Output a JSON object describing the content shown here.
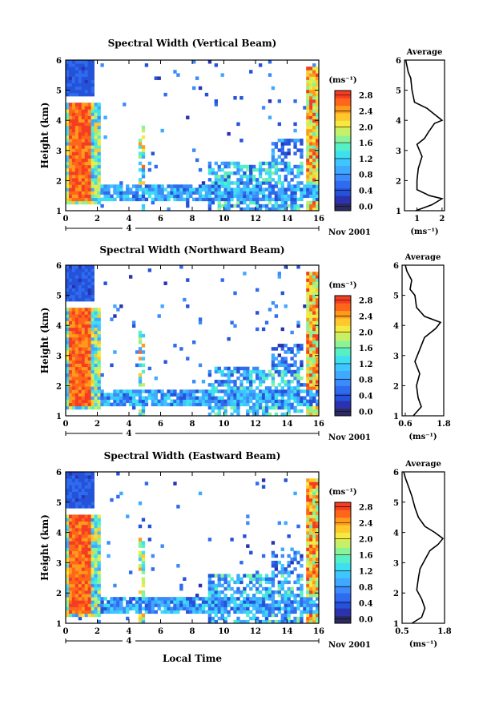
{
  "colors": {
    "scale": [
      "#2b2a63",
      "#2a32b0",
      "#2452d8",
      "#2f6bee",
      "#3c8bfa",
      "#3fa9ff",
      "#3fc6ff",
      "#3ee0f0",
      "#56f0c6",
      "#8af39a",
      "#c5f067",
      "#f3ea43",
      "#ffc92e",
      "#ff9a1c",
      "#ff6619",
      "#f43d22"
    ],
    "line": "#000000"
  },
  "shared": {
    "xlabel": "Local Time",
    "date_label": "Nov 2001",
    "day_marker": "4",
    "ylabel": "Height (km)",
    "colorbar_unit": "(ms⁻¹)",
    "profile_title": "Average",
    "profile_unit": "(ms⁻¹)"
  },
  "chart_data": [
    {
      "type": "heatmap",
      "title": "Spectral Width (Vertical Beam)",
      "xlabel": "Local Time",
      "ylabel": "Height (km)",
      "xlim": [
        0,
        16
      ],
      "ylim": [
        1,
        6
      ],
      "xticks": [
        0,
        2,
        4,
        6,
        8,
        10,
        12,
        14,
        16
      ],
      "yticks": [
        1,
        2,
        3,
        4,
        5,
        6
      ],
      "colorbar": {
        "min": 0.0,
        "max": 2.8,
        "ticks": [
          "0.0",
          "0.4",
          "0.8",
          "1.2",
          "1.6",
          "2.0",
          "2.4",
          "2.8"
        ]
      },
      "profile": {
        "title": "Average",
        "xlim": [
          0.5,
          2.1
        ],
        "xticks": [
          1,
          2
        ],
        "heights": [
          1.0,
          1.2,
          1.4,
          1.5,
          1.7,
          2.0,
          2.4,
          2.8,
          3.2,
          3.4,
          3.6,
          3.9,
          4.0,
          4.2,
          4.4,
          4.6,
          5.0,
          5.4,
          5.6,
          5.8,
          6.0
        ],
        "values": [
          0.95,
          1.6,
          2.0,
          1.5,
          1.0,
          1.0,
          1.05,
          1.2,
          1.0,
          1.3,
          1.45,
          1.7,
          2.0,
          1.7,
          1.4,
          0.9,
          0.8,
          0.75,
          0.65,
          0.6,
          0.55
        ]
      }
    },
    {
      "type": "heatmap",
      "title": "Spectral Width (Northward Beam)",
      "xlabel": "Local Time",
      "ylabel": "Height (km)",
      "xlim": [
        0,
        16
      ],
      "ylim": [
        1,
        6
      ],
      "xticks": [
        0,
        2,
        4,
        6,
        8,
        10,
        12,
        14,
        16
      ],
      "yticks": [
        1,
        2,
        3,
        4,
        5,
        6
      ],
      "colorbar": {
        "min": 0.0,
        "max": 2.8,
        "ticks": [
          "0.0",
          "0.4",
          "0.8",
          "1.2",
          "1.6",
          "2.0",
          "2.4",
          "2.8"
        ]
      },
      "profile": {
        "title": "Average",
        "xlim": [
          0.5,
          1.8
        ],
        "xticks": [
          0.6,
          1.8
        ],
        "heights": [
          1.0,
          1.3,
          1.6,
          2.0,
          2.4,
          2.8,
          3.2,
          3.6,
          3.9,
          4.1,
          4.3,
          4.6,
          5.0,
          5.2,
          5.5,
          5.8,
          6.0
        ],
        "values": [
          0.85,
          1.1,
          1.0,
          0.95,
          1.05,
          0.9,
          1.05,
          1.2,
          1.55,
          1.7,
          1.2,
          0.95,
          0.9,
          0.75,
          0.8,
          0.65,
          0.6
        ]
      }
    },
    {
      "type": "heatmap",
      "title": "Spectral Width (Eastward Beam)",
      "xlabel": "Local Time",
      "ylabel": "Height (km)",
      "xlim": [
        0,
        16
      ],
      "ylim": [
        1,
        6
      ],
      "xticks": [
        0,
        2,
        4,
        6,
        8,
        10,
        12,
        14,
        16
      ],
      "yticks": [
        1,
        2,
        3,
        4,
        5,
        6
      ],
      "colorbar": {
        "min": 0.0,
        "max": 2.8,
        "ticks": [
          "0.0",
          "0.4",
          "0.8",
          "1.2",
          "1.6",
          "2.0",
          "2.4",
          "2.8"
        ]
      },
      "profile": {
        "title": "Average",
        "xlim": [
          0.5,
          1.8
        ],
        "xticks": [
          0.5,
          1.8
        ],
        "heights": [
          1.0,
          1.2,
          1.5,
          1.8,
          2.1,
          2.5,
          2.8,
          3.1,
          3.4,
          3.6,
          3.8,
          4.0,
          4.2,
          4.5,
          4.8,
          5.2,
          5.5,
          5.8,
          6.0
        ],
        "values": [
          0.8,
          1.1,
          1.2,
          1.1,
          0.95,
          1.0,
          1.05,
          1.2,
          1.35,
          1.6,
          1.75,
          1.5,
          1.2,
          1.0,
          0.9,
          0.8,
          0.7,
          0.6,
          0.55
        ]
      }
    }
  ]
}
